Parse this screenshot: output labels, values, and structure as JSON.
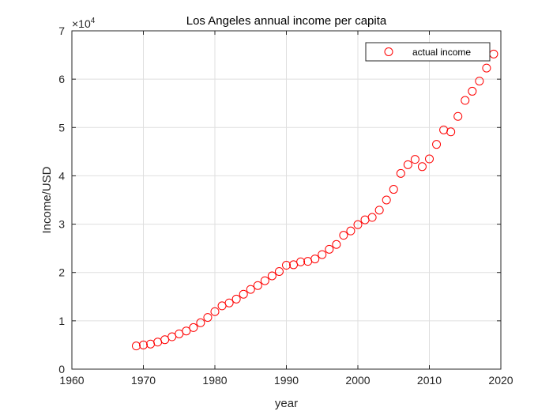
{
  "chart_data": {
    "type": "scatter",
    "title": "Los Angeles annual income per capita",
    "xlabel": "year",
    "ylabel": "Income/USD",
    "xlim": [
      1960,
      2020
    ],
    "ylim": [
      0,
      70000
    ],
    "x_ticks": [
      "1960",
      "1970",
      "1980",
      "1990",
      "2000",
      "2010",
      "2020"
    ],
    "y_ticks": [
      "0",
      "1",
      "2",
      "3",
      "4",
      "5",
      "6",
      "7"
    ],
    "y_exponent_base": "×10",
    "y_exponent_power": "4",
    "grid": true,
    "legend_position": "top-right",
    "marker_color": "#ff0000",
    "series": [
      {
        "name": "actual income",
        "x": [
          1969,
          1970,
          1971,
          1972,
          1973,
          1974,
          1975,
          1976,
          1977,
          1978,
          1979,
          1980,
          1981,
          1982,
          1983,
          1984,
          1985,
          1986,
          1987,
          1988,
          1989,
          1990,
          1991,
          1992,
          1993,
          1994,
          1995,
          1996,
          1997,
          1998,
          1999,
          2000,
          2001,
          2002,
          2003,
          2004,
          2005,
          2006,
          2007,
          2008,
          2009,
          2010,
          2011,
          2012,
          2013,
          2014,
          2015,
          2016,
          2017,
          2018,
          2019
        ],
        "y": [
          4800,
          5000,
          5200,
          5600,
          6100,
          6700,
          7300,
          7900,
          8600,
          9600,
          10700,
          11900,
          13100,
          13700,
          14500,
          15500,
          16500,
          17300,
          18300,
          19300,
          20200,
          21500,
          21600,
          22200,
          22300,
          22800,
          23700,
          24800,
          25800,
          27700,
          28600,
          29900,
          30900,
          31400,
          32900,
          35000,
          37200,
          40500,
          42300,
          43400,
          41900,
          43500,
          46500,
          49500,
          49100,
          52300,
          55600,
          57500,
          59600,
          62300,
          65200
        ]
      }
    ]
  }
}
